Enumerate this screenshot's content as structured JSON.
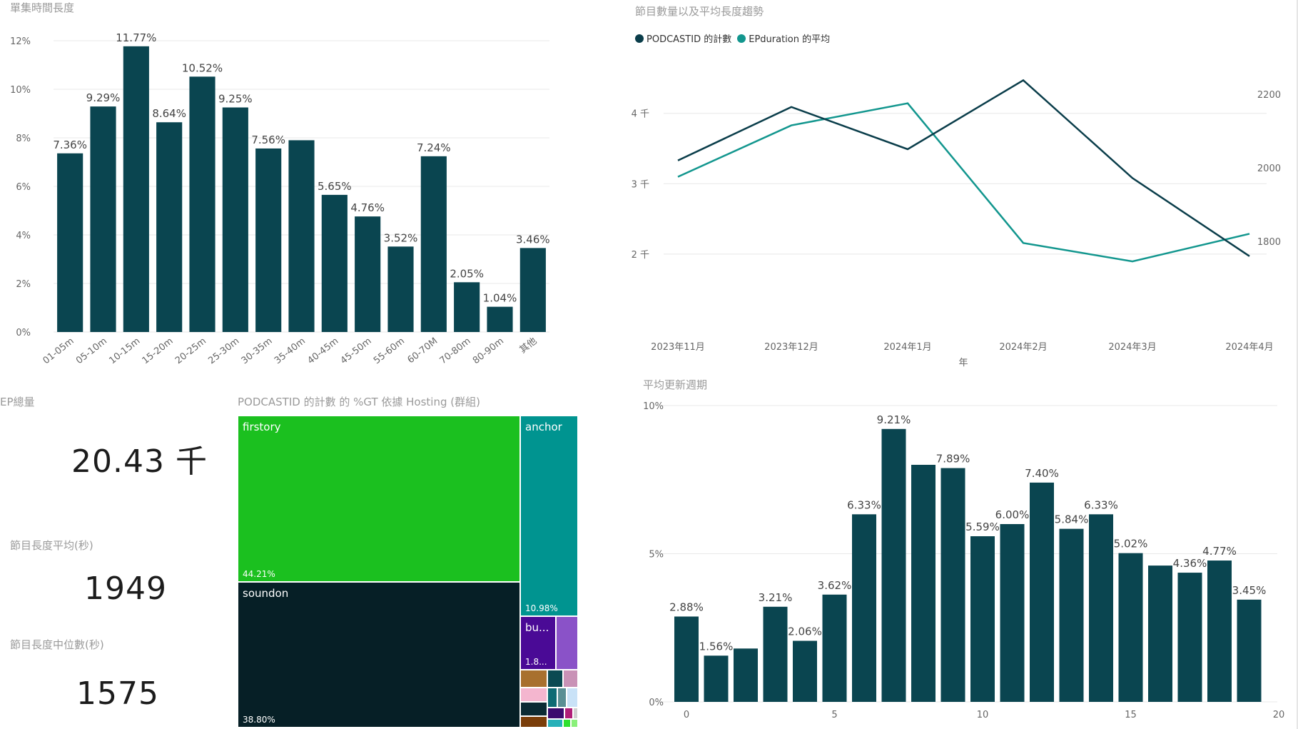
{
  "colors": {
    "bar": "#0a4550",
    "line_count": "#0a3d4a",
    "line_duration": "#12968e",
    "grid": "#e8e8e8",
    "axis_text": "#666666"
  },
  "panels": {
    "duration_hist_title": "單集時間長度",
    "trend_title": "節目數量以及平均長度趨勢",
    "ep_total_label": "EP總量",
    "ep_total_value": "20.43 千",
    "avg_length_label": "節目長度平均(秒)",
    "avg_length_value": "1949",
    "median_length_label": "節目長度中位數(秒)",
    "median_length_value": "1575",
    "treemap_title": "PODCASTID 的計數 的 %GT 依據 Hosting (群組)",
    "update_cycle_title": "平均更新週期"
  },
  "chart_data": [
    {
      "type": "bar",
      "title": "單集時間長度",
      "categories": [
        "01-05m",
        "05-10m",
        "10-15m",
        "15-20m",
        "20-25m",
        "25-30m",
        "30-35m",
        "35-40m",
        "40-45m",
        "45-50m",
        "55-60m",
        "60-70M",
        "70-80m",
        "80-90m",
        "其他"
      ],
      "values": [
        7.36,
        9.29,
        11.77,
        8.64,
        10.52,
        9.25,
        7.56,
        7.9,
        5.65,
        4.76,
        3.52,
        7.24,
        2.05,
        1.04,
        3.46
      ],
      "data_labels": [
        "7.36%",
        "9.29%",
        "11.77%",
        "8.64%",
        "10.52%",
        "9.25%",
        "7.56%",
        "",
        "5.65%",
        "4.76%",
        "3.52%",
        "7.24%",
        "2.05%",
        "1.04%",
        "3.46%"
      ],
      "yticks": [
        "0%",
        "2%",
        "4%",
        "6%",
        "8%",
        "10%",
        "12%"
      ],
      "ylim": [
        0,
        12.5
      ],
      "grid": true
    },
    {
      "type": "line",
      "title": "節目數量以及平均長度趨勢",
      "x": [
        "2023年11月",
        "2023年12月",
        "2024年1月",
        "2024年2月",
        "2024年3月",
        "2024年4月"
      ],
      "xlabel": "年",
      "series": [
        {
          "name": "PODCASTID 的計數",
          "axis": "left",
          "values": [
            3330,
            4090,
            3490,
            4470,
            3080,
            1970
          ]
        },
        {
          "name": "EPduration 的平均",
          "axis": "right",
          "values": [
            1975,
            2115,
            2175,
            1795,
            1745,
            1820
          ]
        }
      ],
      "left_yticks": [
        "2 千",
        "3 千",
        "4 千"
      ],
      "left_ylim": [
        1400,
        4900
      ],
      "right_yticks": [
        "1800",
        "2000",
        "2200"
      ],
      "right_ylim": [
        1650,
        2320
      ],
      "legend_position": "top-left",
      "grid": true
    },
    {
      "type": "treemap",
      "title": "PODCASTID 的計數 的 %GT 依據 Hosting (群組)",
      "items": [
        {
          "name": "firstory",
          "value": 44.21,
          "label": "44.21%",
          "color": "#1bc01f"
        },
        {
          "name": "soundon",
          "value": 38.8,
          "label": "38.80%",
          "color": "#061f26"
        },
        {
          "name": "anchor",
          "value": 10.98,
          "label": "10.98%",
          "color": "#009490"
        },
        {
          "name": "bu...",
          "value": 1.8,
          "label": "1.8...",
          "color": "#4a0a96"
        }
      ]
    },
    {
      "type": "bar",
      "title": "平均更新週期",
      "x": [
        0,
        1,
        2,
        3,
        4,
        5,
        6,
        7,
        8,
        9,
        10,
        11,
        12,
        13,
        14,
        15,
        16,
        17,
        18,
        19
      ],
      "values": [
        2.88,
        1.56,
        1.8,
        3.21,
        2.06,
        3.62,
        6.33,
        9.21,
        8.0,
        7.89,
        5.59,
        6.0,
        7.4,
        5.84,
        6.33,
        5.02,
        4.6,
        4.36,
        4.77,
        3.45
      ],
      "data_labels": [
        "2.88%",
        "1.56%",
        "",
        "3.21%",
        "2.06%",
        "3.62%",
        "6.33%",
        "9.21%",
        "",
        "7.89%",
        "5.59%",
        "6.00%",
        "7.40%",
        "5.84%",
        "6.33%",
        "5.02%",
        "",
        "4.36%",
        "4.77%",
        "3.45%"
      ],
      "xticks": [
        "0",
        "5",
        "10",
        "15",
        "20"
      ],
      "yticks": [
        "0%",
        "5%",
        "10%"
      ],
      "ylim": [
        0,
        10
      ],
      "grid": true
    }
  ]
}
